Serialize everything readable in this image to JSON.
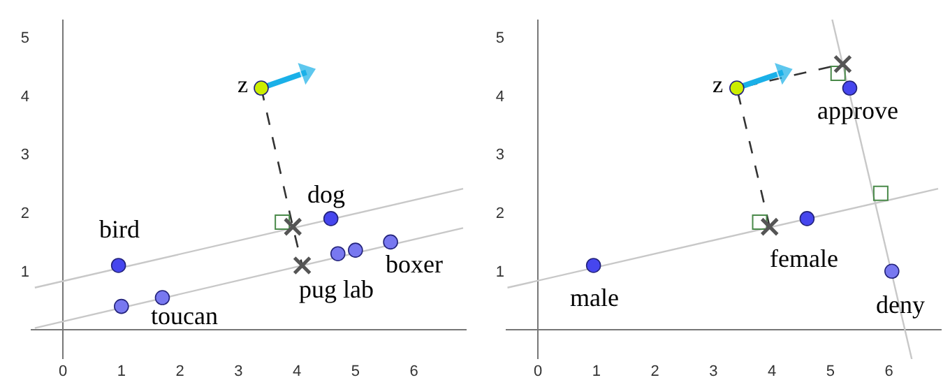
{
  "chart_data": [
    {
      "type": "scatter",
      "xlim": [
        -0.55,
        6.9
      ],
      "ylim": [
        -0.5,
        5.3
      ],
      "xticks": [
        0,
        1,
        2,
        3,
        4,
        5,
        6
      ],
      "yticks": [
        1,
        2,
        3,
        4,
        5
      ],
      "grid": false,
      "legend": false,
      "series": [
        {
          "type": "line",
          "x": [
            -0.48,
            6.84
          ],
          "values": [
            0.72,
            2.41
          ],
          "color": "#c8c8c8",
          "line_style": "solid",
          "marker": "none"
        },
        {
          "type": "line",
          "x": [
            -0.48,
            6.84
          ],
          "values": [
            0.03,
            1.74
          ],
          "color": "#c8c8c8",
          "line_style": "solid",
          "marker": "none"
        },
        {
          "type": "line",
          "x": [
            3.39,
            3.93,
            4.09
          ],
          "values": [
            4.13,
            1.76,
            1.1
          ],
          "color": "#333333",
          "line_style": "dashed",
          "marker": "none"
        },
        {
          "type": "scatter",
          "x": [
            3.75
          ],
          "values": [
            1.84
          ],
          "color": "#4a8a4a",
          "marker": "square"
        },
        {
          "type": "line",
          "x": [
            3.39,
            4.16
          ],
          "values": [
            4.13,
            4.4
          ],
          "color": "#1ab0e8",
          "line_style": "solid",
          "marker": "triangle"
        },
        {
          "type": "scatter",
          "x": [
            0.95,
            4.58
          ],
          "values": [
            1.1,
            1.9
          ],
          "color": "#4646ee",
          "marker": "circle"
        },
        {
          "type": "scatter",
          "x": [
            1.0,
            1.7,
            4.7,
            5.0,
            5.6
          ],
          "values": [
            0.4,
            0.55,
            1.3,
            1.36,
            1.5
          ],
          "color": "#7878f0",
          "marker": "circle"
        },
        {
          "type": "scatter",
          "x": [
            3.93,
            4.09
          ],
          "values": [
            1.76,
            1.1
          ],
          "color": "#555555",
          "marker": "cross"
        },
        {
          "type": "scatter",
          "x": [
            3.39
          ],
          "values": [
            4.13
          ],
          "color": "#ccee00",
          "marker": "circle"
        }
      ],
      "annotations": [
        "z",
        "bird",
        "toucan",
        "dog",
        "pug lab",
        "boxer"
      ]
    },
    {
      "type": "scatter",
      "xlim": [
        -0.55,
        6.9
      ],
      "ylim": [
        -0.5,
        5.3
      ],
      "xticks": [
        0,
        1,
        2,
        3,
        4,
        5,
        6
      ],
      "yticks": [
        1,
        2,
        3,
        4,
        5
      ],
      "grid": false,
      "legend": false,
      "series": [
        {
          "type": "line",
          "x": [
            -0.52,
            6.84
          ],
          "values": [
            0.72,
            2.41
          ],
          "color": "#c8c8c8",
          "line_style": "solid",
          "marker": "none"
        },
        {
          "type": "line",
          "x": [
            5.03,
            6.39
          ],
          "values": [
            5.3,
            -0.5
          ],
          "color": "#c8c8c8",
          "line_style": "solid",
          "marker": "none"
        },
        {
          "type": "line",
          "x": [
            3.96,
            3.4,
            5.21
          ],
          "values": [
            1.76,
            4.13,
            4.54
          ],
          "color": "#333333",
          "line_style": "dashed",
          "marker": "none"
        },
        {
          "type": "scatter",
          "x": [
            3.79,
            5.13,
            5.86
          ],
          "values": [
            1.84,
            4.38,
            2.33
          ],
          "color": "#4a8a4a",
          "marker": "square"
        },
        {
          "type": "line",
          "x": [
            3.4,
            4.19
          ],
          "values": [
            4.13,
            4.4
          ],
          "color": "#1ab0e8",
          "line_style": "solid",
          "marker": "triangle"
        },
        {
          "type": "scatter",
          "x": [
            0.95,
            4.6,
            5.33
          ],
          "values": [
            1.1,
            1.9,
            4.13
          ],
          "color": "#4646ee",
          "marker": "circle"
        },
        {
          "type": "scatter",
          "x": [
            6.05
          ],
          "values": [
            1.0
          ],
          "color": "#7878f0",
          "marker": "circle"
        },
        {
          "type": "scatter",
          "x": [
            3.96,
            5.21
          ],
          "values": [
            1.76,
            4.54
          ],
          "color": "#555555",
          "marker": "cross"
        },
        {
          "type": "scatter",
          "x": [
            3.4
          ],
          "values": [
            4.13
          ],
          "color": "#ccee00",
          "marker": "circle"
        }
      ],
      "annotations": [
        "z",
        "approve",
        "female",
        "male",
        "deny"
      ]
    }
  ]
}
